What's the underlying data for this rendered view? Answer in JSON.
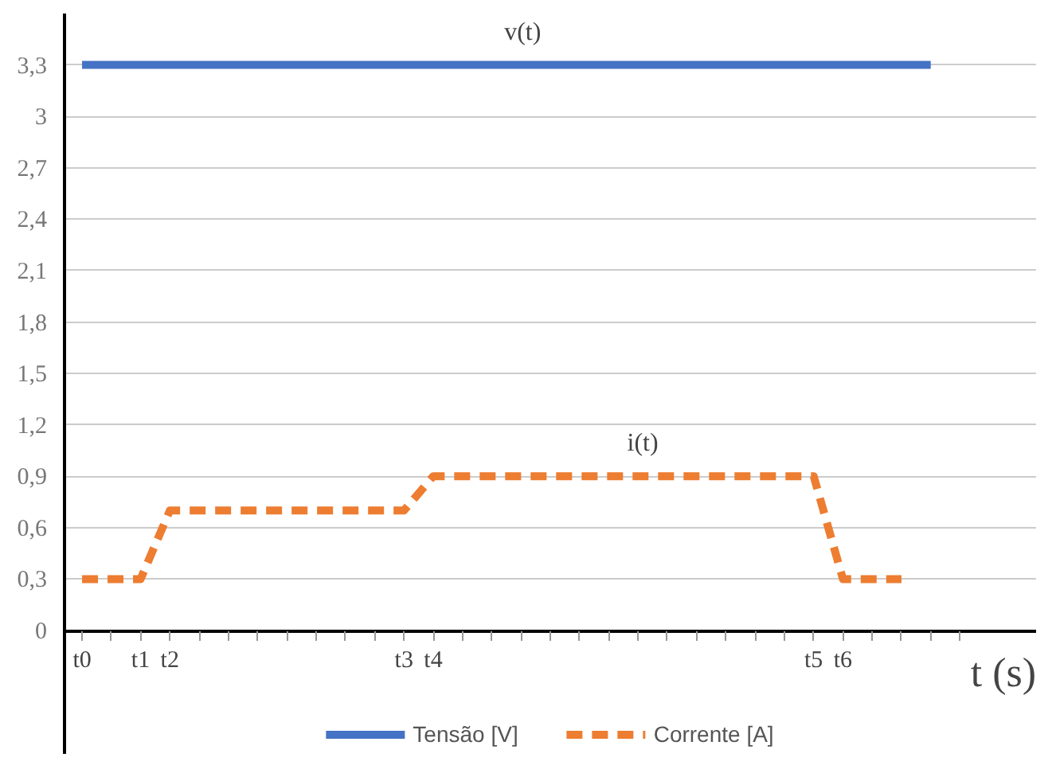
{
  "chart_data": {
    "type": "line",
    "xlabel": "t (s)",
    "categories": [
      "t0",
      null,
      "t1",
      "t2",
      null,
      null,
      null,
      null,
      null,
      null,
      null,
      "t3",
      "t4",
      null,
      null,
      null,
      null,
      null,
      null,
      null,
      null,
      null,
      null,
      null,
      null,
      "t5",
      "t6",
      null,
      null,
      null,
      null
    ],
    "series": [
      {
        "name": "Tensão [V]",
        "color": "#4472c4",
        "line_style": "solid",
        "values": [
          3.3,
          3.3,
          3.3,
          3.3,
          3.3,
          3.3,
          3.3,
          3.3,
          3.3,
          3.3,
          3.3,
          3.3,
          3.3,
          3.3,
          3.3,
          3.3,
          3.3,
          3.3,
          3.3,
          3.3,
          3.3,
          3.3,
          3.3,
          3.3,
          3.3,
          3.3,
          3.3,
          3.3,
          3.3,
          3.3,
          null
        ]
      },
      {
        "name": "Corrente [A]",
        "color": "#ed7d31",
        "line_style": "dashed",
        "values": [
          0.3,
          0.3,
          0.3,
          0.7,
          0.7,
          0.7,
          0.7,
          0.7,
          0.7,
          0.7,
          0.7,
          0.7,
          0.9,
          0.9,
          0.9,
          0.9,
          0.9,
          0.9,
          0.9,
          0.9,
          0.9,
          0.9,
          0.9,
          0.9,
          0.9,
          0.9,
          0.3,
          0.3,
          0.3,
          null,
          null
        ]
      }
    ],
    "ylim": [
      0,
      3.6
    ],
    "yticks": [
      {
        "value": 0,
        "label": "0"
      },
      {
        "value": 0.3,
        "label": "0,3"
      },
      {
        "value": 0.6,
        "label": "0,6"
      },
      {
        "value": 0.9,
        "label": "0,9"
      },
      {
        "value": 1.2,
        "label": "1,2"
      },
      {
        "value": 1.5,
        "label": "1,5"
      },
      {
        "value": 1.8,
        "label": "1,8"
      },
      {
        "value": 2.1,
        "label": "2,1"
      },
      {
        "value": 2.4,
        "label": "2,4"
      },
      {
        "value": 2.7,
        "label": "2,7"
      },
      {
        "value": 3,
        "label": "3"
      },
      {
        "value": 3.3,
        "label": "3,3"
      }
    ],
    "annotations": [
      {
        "text": "v(t)",
        "y": 3.3
      },
      {
        "text": "i(t)",
        "y": 0.9
      }
    ],
    "grid": "y",
    "legend": "bottom",
    "marker": "none"
  }
}
